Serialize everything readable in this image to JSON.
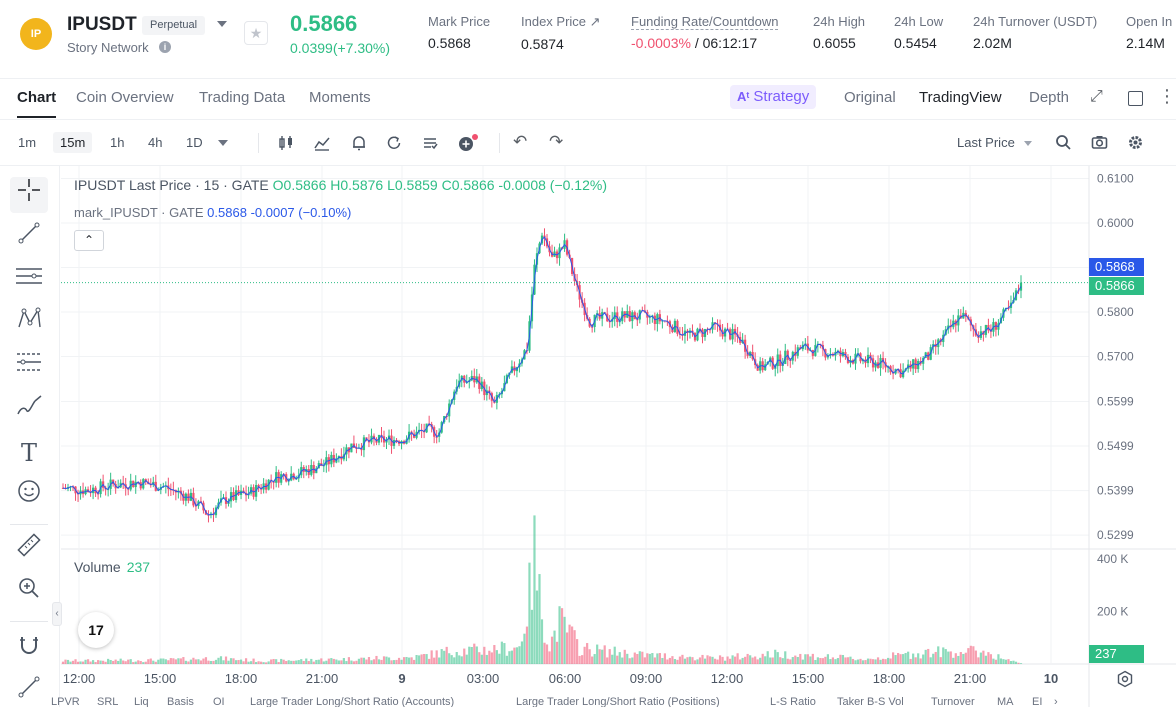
{
  "header": {
    "logo_text": "IP",
    "pair": "IPUSDT",
    "contract_type": "Perpetual",
    "network": "Story Network",
    "last_price": "0.5866",
    "change": "0.0399(+7.30%)",
    "stats": [
      {
        "label": "Mark Price",
        "value": "0.5868"
      },
      {
        "label": "Index Price ↗",
        "value": "0.5874"
      },
      {
        "label": "Funding Rate/Countdown",
        "value_neg": "-0.0003%",
        "value": "/ 06:12:17"
      },
      {
        "label": "24h High",
        "value": "0.6055"
      },
      {
        "label": "24h Low",
        "value": "0.5454"
      },
      {
        "label": "24h Turnover (USDT)",
        "value": "2.02M"
      },
      {
        "label": "Open In",
        "value": "2.14M"
      }
    ]
  },
  "tabs": {
    "left": [
      "Chart",
      "Coin Overview",
      "Trading Data",
      "Moments"
    ],
    "strategy": "Strategy",
    "right": [
      "Original",
      "TradingView",
      "Depth"
    ]
  },
  "toolbar": {
    "timeframes": [
      "1m",
      "15m",
      "1h",
      "4h",
      "1D"
    ],
    "price_type": "Last Price"
  },
  "legend": {
    "title": "IPUSDT Last Price · 15 · GATE",
    "o": "O0.5866",
    "h": "H0.5876",
    "l": "L0.5859",
    "c": "C0.5866",
    "chg": "-0.0008 (−0.12%)",
    "mark_title": "mark_IPUSDT · GATE",
    "mark_value": "0.5868",
    "mark_chg": "-0.0007 (−0.10%)"
  },
  "volume": {
    "label": "Volume",
    "value": "237"
  },
  "tv_logo": "17",
  "colors": {
    "up": "#2ebd85",
    "down": "#f0516f",
    "mark_line": "#2a58e8",
    "strategy": "#7c5cfc"
  },
  "chart_data": {
    "type": "candlestick",
    "symbol": "IPUSDT",
    "interval": "15m",
    "y_ticks": [
      "0.6100",
      "0.6000",
      "0.5900",
      "0.5800",
      "0.5700",
      "0.5599",
      "0.5499",
      "0.5399",
      "0.5299"
    ],
    "x_ticks": [
      "12:00",
      "15:00",
      "18:00",
      "21:00",
      "9",
      "03:00",
      "06:00",
      "09:00",
      "12:00",
      "15:00",
      "18:00",
      "21:00",
      "10"
    ],
    "volume_ticks": [
      "400 K",
      "200 K"
    ],
    "last_price": 0.5866,
    "mark_price": 0.5868,
    "ylim": [
      0.527,
      0.611
    ],
    "close_anchors": [
      [
        0,
        0.5405
      ],
      [
        10,
        0.54
      ],
      [
        20,
        0.5412
      ],
      [
        30,
        0.5418
      ],
      [
        40,
        0.5408
      ],
      [
        50,
        0.5385
      ],
      [
        58,
        0.5345
      ],
      [
        65,
        0.538
      ],
      [
        75,
        0.5395
      ],
      [
        85,
        0.543
      ],
      [
        95,
        0.544
      ],
      [
        105,
        0.546
      ],
      [
        115,
        0.55
      ],
      [
        125,
        0.551
      ],
      [
        135,
        0.5515
      ],
      [
        145,
        0.5535
      ],
      [
        150,
        0.553
      ],
      [
        157,
        0.564
      ],
      [
        165,
        0.565
      ],
      [
        172,
        0.559
      ],
      [
        178,
        0.5655
      ],
      [
        185,
        0.572
      ],
      [
        188,
        0.59
      ],
      [
        191,
        0.598
      ],
      [
        195,
        0.592
      ],
      [
        200,
        0.595
      ],
      [
        205,
        0.585
      ],
      [
        210,
        0.578
      ],
      [
        220,
        0.579
      ],
      [
        230,
        0.579
      ],
      [
        240,
        0.578
      ],
      [
        250,
        0.5745
      ],
      [
        260,
        0.5765
      ],
      [
        270,
        0.574
      ],
      [
        278,
        0.5675
      ],
      [
        285,
        0.569
      ],
      [
        295,
        0.572
      ],
      [
        305,
        0.571
      ],
      [
        315,
        0.5695
      ],
      [
        325,
        0.5685
      ],
      [
        335,
        0.5665
      ],
      [
        345,
        0.57
      ],
      [
        352,
        0.575
      ],
      [
        358,
        0.5795
      ],
      [
        364,
        0.5755
      ],
      [
        370,
        0.576
      ],
      [
        378,
        0.581
      ],
      [
        382,
        0.5866
      ]
    ],
    "volume_anchors": [
      [
        0,
        12000
      ],
      [
        40,
        15000
      ],
      [
        60,
        22000
      ],
      [
        80,
        12000
      ],
      [
        100,
        16000
      ],
      [
        140,
        25000
      ],
      [
        155,
        50000
      ],
      [
        170,
        55000
      ],
      [
        182,
        65000
      ],
      [
        186,
        260000
      ],
      [
        188,
        410000
      ],
      [
        190,
        250000
      ],
      [
        194,
        70000
      ],
      [
        198,
        160000
      ],
      [
        202,
        120000
      ],
      [
        206,
        60000
      ],
      [
        230,
        35000
      ],
      [
        260,
        22000
      ],
      [
        285,
        38000
      ],
      [
        320,
        18000
      ],
      [
        345,
        45000
      ],
      [
        360,
        48000
      ],
      [
        368,
        45000
      ],
      [
        375,
        20000
      ],
      [
        382,
        1000
      ]
    ]
  }
}
